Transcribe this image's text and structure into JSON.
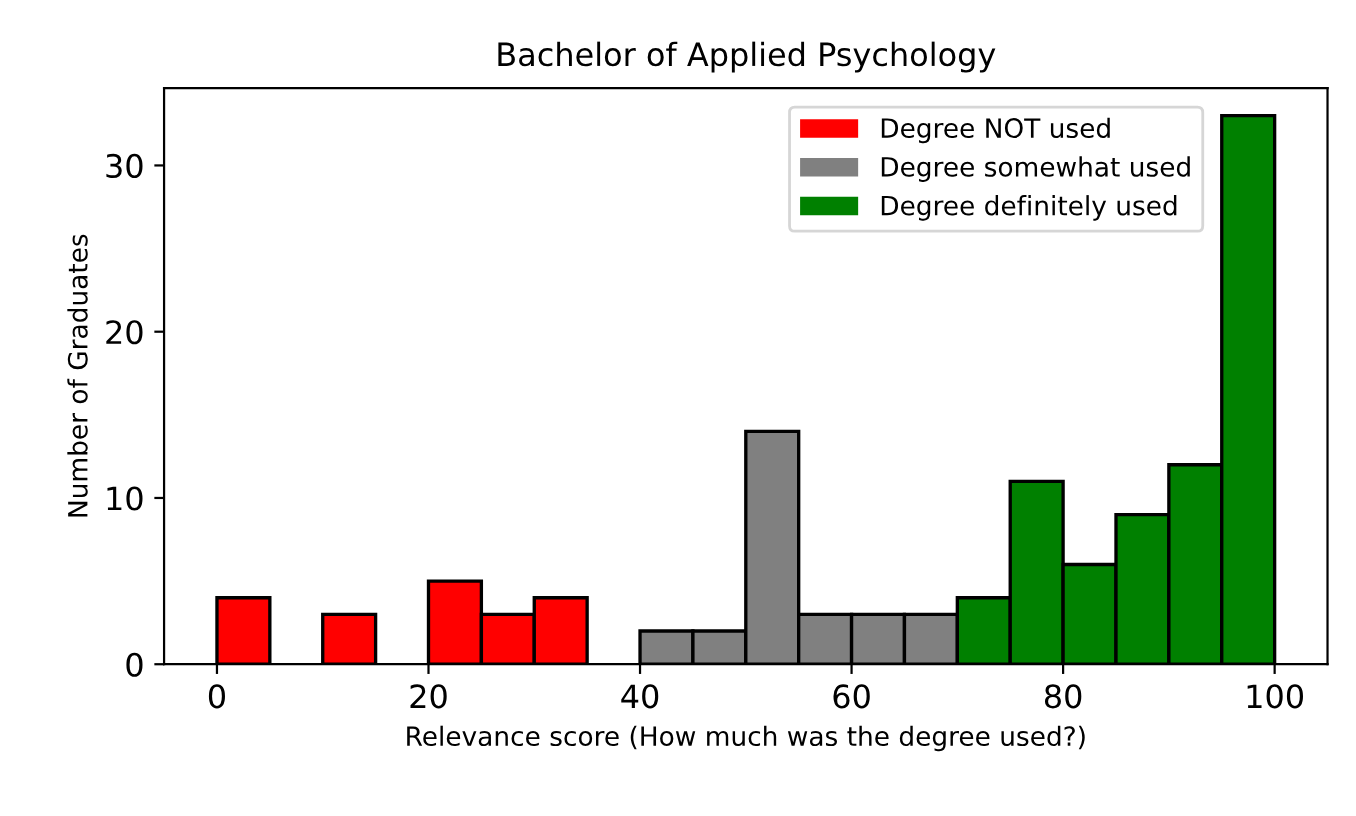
{
  "chart_data": {
    "type": "histogram",
    "title": "Bachelor of Applied Psychology",
    "xlabel": "Relevance score (How much was the degree used?)",
    "ylabel": "Number of Graduates",
    "bins": [
      0,
      5,
      10,
      15,
      20,
      25,
      30,
      35,
      40,
      45,
      50,
      55,
      60,
      65,
      70,
      75,
      80,
      85,
      90,
      95,
      100
    ],
    "series": [
      {
        "name": "Degree NOT used",
        "color": "#ff0000",
        "values": [
          4,
          0,
          3,
          0,
          5,
          3,
          4,
          0,
          null,
          null,
          null,
          null,
          null,
          null,
          null,
          null,
          null,
          null,
          null,
          null
        ]
      },
      {
        "name": "Degree somewhat used",
        "color": "#808080",
        "values": [
          null,
          null,
          null,
          null,
          null,
          null,
          null,
          null,
          2,
          2,
          14,
          3,
          3,
          3,
          null,
          null,
          null,
          null,
          null,
          null
        ]
      },
      {
        "name": "Degree definitely used",
        "color": "#008000",
        "values": [
          null,
          null,
          null,
          null,
          null,
          null,
          null,
          null,
          null,
          null,
          null,
          null,
          null,
          null,
          4,
          11,
          6,
          9,
          12,
          33
        ]
      }
    ],
    "xlim": [
      -5,
      105
    ],
    "xticks": [
      0,
      20,
      40,
      60,
      80,
      100
    ],
    "ylim": [
      0,
      34.65
    ],
    "yticks": [
      0,
      10,
      20,
      30
    ],
    "legend": "top right"
  }
}
